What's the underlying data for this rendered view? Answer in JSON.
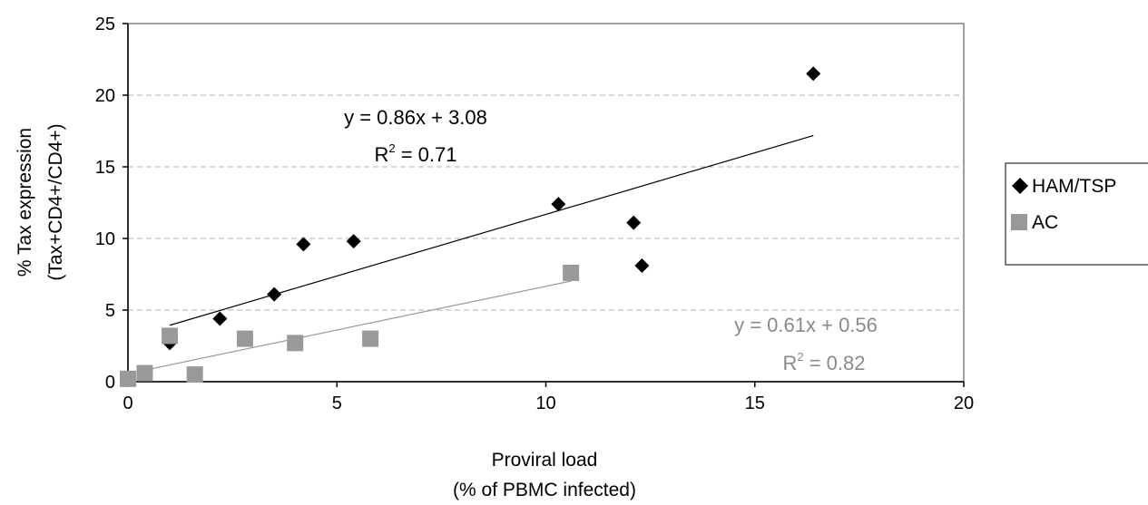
{
  "chart_data": {
    "type": "scatter",
    "title": "",
    "xlabel": [
      "Proviral load",
      "(% of PBMC infected)"
    ],
    "ylabel": [
      "% Tax expression",
      "(Tax+CD4+/CD4+)"
    ],
    "xlim": [
      0,
      20
    ],
    "ylim": [
      0,
      25
    ],
    "x_ticks": [
      "0",
      "5",
      "10",
      "15",
      "20"
    ],
    "y_ticks": [
      "0",
      "5",
      "10",
      "15",
      "20",
      "25"
    ],
    "grid": "horizontal dashed",
    "legend_placement": "right",
    "series": [
      {
        "name": "HAM/TSP",
        "marker": "diamond",
        "color": "#000000",
        "points": [
          [
            1.0,
            2.7
          ],
          [
            2.2,
            4.4
          ],
          [
            3.5,
            6.1
          ],
          [
            4.2,
            9.6
          ],
          [
            5.4,
            9.8
          ],
          [
            10.3,
            12.4
          ],
          [
            12.1,
            11.1
          ],
          [
            12.3,
            8.1
          ],
          [
            16.4,
            21.5
          ]
        ],
        "trendline": {
          "x_range": [
            1.0,
            16.4
          ],
          "slope": 0.86,
          "intercept": 3.08,
          "equation": "y = 0.86x + 3.08",
          "r2_prefix": "R",
          "r2_sup": "2",
          "r2_suffix": " = 0.71"
        }
      },
      {
        "name": "AC",
        "marker": "square",
        "color": "#999999",
        "points": [
          [
            0.0,
            0.2
          ],
          [
            0.4,
            0.6
          ],
          [
            1.0,
            3.2
          ],
          [
            1.6,
            0.5
          ],
          [
            2.8,
            3.0
          ],
          [
            4.0,
            2.7
          ],
          [
            5.8,
            3.0
          ],
          [
            10.6,
            7.6
          ]
        ],
        "trendline": {
          "x_range": [
            0.4,
            10.6
          ],
          "slope": 0.61,
          "intercept": 0.56,
          "equation": "y = 0.61x + 0.56",
          "r2_prefix": "R",
          "r2_sup": "2",
          "r2_suffix": " = 0.82"
        }
      }
    ]
  }
}
